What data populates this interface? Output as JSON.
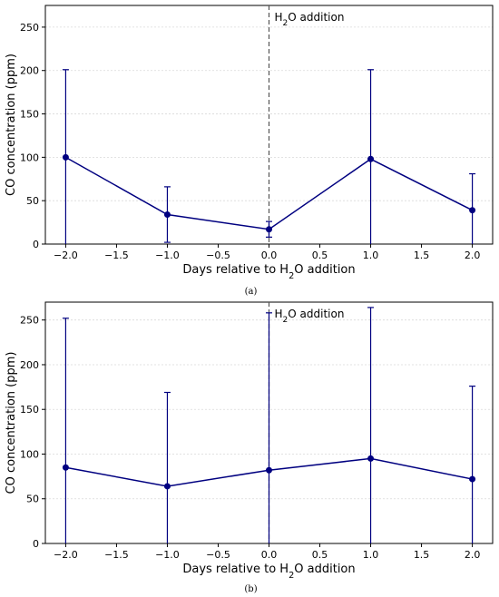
{
  "chart_data": [
    {
      "type": "line",
      "caption": "(a)",
      "xlabel": "Days relative to H₂O addition",
      "ylabel": "CO concentration (ppm)",
      "xlim": [
        -2.2,
        2.2
      ],
      "ylim": [
        0,
        275
      ],
      "xticks": [
        -2.0,
        -1.5,
        -1.0,
        -0.5,
        0.0,
        0.5,
        1.0,
        1.5,
        2.0
      ],
      "xtick_labels": [
        "−2.0",
        "−1.5",
        "−1.0",
        "−0.5",
        "0.0",
        "0.5",
        "1.0",
        "1.5",
        "2.0"
      ],
      "yticks": [
        0,
        50,
        100,
        150,
        200,
        250
      ],
      "ytick_labels": [
        "0",
        "50",
        "100",
        "150",
        "200",
        "250"
      ],
      "grid": "horizontal-dotted",
      "annotation": {
        "x": 0,
        "text": "H₂O addition",
        "style": "dashed vertical line"
      },
      "color": "#000080",
      "series": [
        {
          "x": [
            -2,
            -1,
            0,
            1,
            2
          ],
          "y": [
            100,
            34,
            17,
            98,
            39
          ],
          "err": [
            101,
            32,
            9,
            103,
            42
          ]
        }
      ]
    },
    {
      "type": "line",
      "caption": "(b)",
      "xlabel": "Days relative to H₂O addition",
      "ylabel": "CO concentration (ppm)",
      "xlim": [
        -2.2,
        2.2
      ],
      "ylim": [
        0,
        270
      ],
      "xticks": [
        -2.0,
        -1.5,
        -1.0,
        -0.5,
        0.0,
        0.5,
        1.0,
        1.5,
        2.0
      ],
      "xtick_labels": [
        "−2.0",
        "−1.5",
        "−1.0",
        "−0.5",
        "0.0",
        "0.5",
        "1.0",
        "1.5",
        "2.0"
      ],
      "yticks": [
        0,
        50,
        100,
        150,
        200,
        250
      ],
      "ytick_labels": [
        "0",
        "50",
        "100",
        "150",
        "200",
        "250"
      ],
      "grid": "horizontal-dotted",
      "annotation": {
        "x": 0,
        "text": "H₂O addition",
        "style": "dashed vertical line"
      },
      "color": "#000080",
      "series": [
        {
          "x": [
            -2,
            -1,
            0,
            1,
            2
          ],
          "y": [
            85,
            64,
            82,
            95,
            72
          ],
          "err": [
            167,
            105,
            176,
            169,
            104
          ]
        }
      ]
    }
  ]
}
